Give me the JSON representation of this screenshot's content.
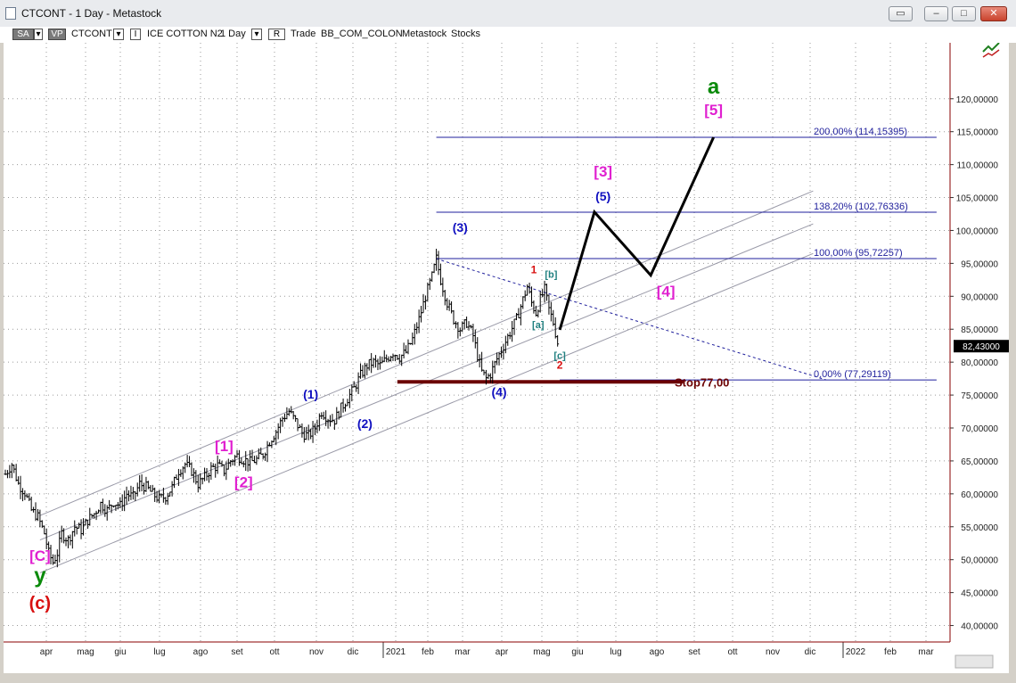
{
  "window": {
    "title": "CTCONT - 1 Day - Metastock",
    "buttons": [
      "restore-icon",
      "minimize-icon",
      "maximize-icon",
      "close-icon"
    ]
  },
  "toolbar": {
    "sa": "SA",
    "vp": "VP",
    "symbol": "CTCONT",
    "name_marker": "I",
    "name": "ICE COTTON N2",
    "period": "1 Day",
    "r_marker": "R",
    "trade": "Trade",
    "source": "BB_COM_COLON",
    "db1": "Metastock",
    "db2": "Stocks"
  },
  "colors": {
    "blue_lines": "#1f1f9c",
    "dark_red": "#6b0000",
    "magenta": "#e020d0",
    "green": "#0a8a0a",
    "red": "#d81010",
    "wave_blue": "#1010c0",
    "teal": "#208080"
  },
  "chart_data": {
    "type": "line",
    "y_unit": "price",
    "ylim": [
      37.5,
      128.5
    ],
    "y_ticks": [
      "40,00000",
      "45,00000",
      "50,00000",
      "55,00000",
      "60,00000",
      "65,00000",
      "70,00000",
      "75,00000",
      "80,00000",
      "85,00000",
      "90,00000",
      "95,00000",
      "100,00000",
      "105,00000",
      "110,00000",
      "115,00000",
      "120,00000"
    ],
    "y_tick_values": [
      40,
      45,
      50,
      55,
      60,
      65,
      70,
      75,
      80,
      85,
      90,
      95,
      100,
      105,
      110,
      115,
      120
    ],
    "x_ticks": [
      "apr",
      "mag",
      "giu",
      "lug",
      "ago",
      "set",
      "ott",
      "nov",
      "dic",
      "2021",
      "feb",
      "mar",
      "apr",
      "mag",
      "giu",
      "lug",
      "ago",
      "set",
      "ott",
      "nov",
      "dic",
      "2022",
      "feb",
      "mar"
    ],
    "last_price_label": "82,43000",
    "last_price": 82.43,
    "price_series": [
      [
        0,
        63.0
      ],
      [
        3,
        64.5
      ],
      [
        6,
        61.5
      ],
      [
        9,
        60.2
      ],
      [
        12,
        57.5
      ],
      [
        15,
        56.5
      ],
      [
        18,
        54.0
      ],
      [
        20,
        51.0
      ],
      [
        22,
        49.6
      ],
      [
        24,
        51.0
      ],
      [
        26,
        54.0
      ],
      [
        29,
        53.0
      ],
      [
        32,
        55.0
      ],
      [
        35,
        54.5
      ],
      [
        38,
        56.0
      ],
      [
        41,
        57.0
      ],
      [
        44,
        58.5
      ],
      [
        47,
        57.5
      ],
      [
        50,
        58.8
      ],
      [
        53,
        58.2
      ],
      [
        56,
        60.0
      ],
      [
        59,
        59.5
      ],
      [
        62,
        61.5
      ],
      [
        65,
        61.0
      ],
      [
        68,
        60.0
      ],
      [
        71,
        59.2
      ],
      [
        74,
        59.6
      ],
      [
        77,
        61.0
      ],
      [
        80,
        63.5
      ],
      [
        83,
        64.5
      ],
      [
        86,
        63.5
      ],
      [
        89,
        61.5
      ],
      [
        92,
        62.5
      ],
      [
        95,
        63.8
      ],
      [
        98,
        64.3
      ],
      [
        101,
        63.5
      ],
      [
        104,
        65.0
      ],
      [
        107,
        65.8
      ],
      [
        110,
        65.2
      ],
      [
        113,
        64.8
      ],
      [
        116,
        65.2
      ],
      [
        119,
        66.0
      ],
      [
        122,
        68.0
      ],
      [
        125,
        69.5
      ],
      [
        128,
        71.5
      ],
      [
        131,
        72.5
      ],
      [
        134,
        71.0
      ],
      [
        137,
        69.2
      ],
      [
        140,
        68.8
      ],
      [
        143,
        70.0
      ],
      [
        146,
        72.5
      ],
      [
        149,
        71.5
      ],
      [
        152,
        71.2
      ],
      [
        155,
        73.0
      ],
      [
        158,
        74.5
      ],
      [
        161,
        76.0
      ],
      [
        164,
        78.0
      ],
      [
        167,
        79.5
      ],
      [
        170,
        80.0
      ],
      [
        173,
        79.5
      ],
      [
        176,
        80.5
      ],
      [
        179,
        81.5
      ],
      [
        182,
        80.8
      ],
      [
        185,
        81.5
      ],
      [
        188,
        83.5
      ],
      [
        191,
        86.5
      ],
      [
        194,
        90.0
      ],
      [
        197,
        93.0
      ],
      [
        199,
        95.7
      ],
      [
        201,
        92.5
      ],
      [
        204,
        89.0
      ],
      [
        207,
        86.5
      ],
      [
        210,
        85.0
      ],
      [
        213,
        86.0
      ],
      [
        216,
        84.0
      ],
      [
        218,
        81.0
      ],
      [
        220,
        78.5
      ],
      [
        222,
        77.5
      ],
      [
        224,
        78.2
      ],
      [
        227,
        80.5
      ],
      [
        230,
        82.5
      ],
      [
        233,
        84.5
      ],
      [
        236,
        86.5
      ],
      [
        239,
        89.5
      ],
      [
        241,
        91.5
      ],
      [
        243,
        89.0
      ],
      [
        245,
        87.5
      ],
      [
        247,
        89.5
      ],
      [
        249,
        91.0
      ],
      [
        251,
        88.0
      ],
      [
        253,
        86.0
      ],
      [
        255,
        83.0
      ],
      [
        256,
        82.4
      ]
    ],
    "series": [
      {
        "values": [
          [
            256,
            84.9
          ],
          [
            272,
            102.8
          ],
          [
            298,
            93.2
          ],
          [
            327,
            114.15
          ]
        ]
      }
    ],
    "fib_levels": [
      {
        "label": "0,00% (77,29119)",
        "value": 77.29119,
        "from": 256,
        "to": 430
      },
      {
        "label": "100,00% (95,72257)",
        "value": 95.72257,
        "from": 199,
        "to": 430
      },
      {
        "label": "138,20% (102,76336)",
        "value": 102.76336,
        "from": 199,
        "to": 430
      },
      {
        "label": "200,00% (114,15395)",
        "value": 114.15395,
        "from": 199,
        "to": 430
      }
    ],
    "stop": {
      "label": "Stop77,00",
      "value": 77.0,
      "from": 181,
      "to": 313
    },
    "channel_lines": [
      {
        "from": [
          16,
          56.7
        ],
        "to": [
          373,
          106.0
        ]
      },
      {
        "from": [
          16,
          53.0
        ],
        "to": [
          373,
          101.0
        ]
      },
      {
        "from": [
          16,
          48.0
        ],
        "to": [
          373,
          96.5
        ]
      }
    ],
    "dashed_trend": {
      "from": [
        199,
        95.7
      ],
      "to": [
        379,
        77.3
      ]
    },
    "labels": [
      {
        "text": "[C]",
        "x": 16,
        "y": 49.8,
        "color": "magenta"
      },
      {
        "text": "y",
        "x": 16,
        "y": 46.5,
        "color": "green"
      },
      {
        "text": "(c)",
        "x": 16,
        "y": 42.5,
        "color": "red"
      },
      {
        "text": "[1]",
        "x": 101,
        "y": 66.5,
        "color": "magenta"
      },
      {
        "text": "[2]",
        "x": 110,
        "y": 61.0,
        "color": "magenta"
      },
      {
        "text": "(1)",
        "x": 141,
        "y": 74.5,
        "color": "wave_blue"
      },
      {
        "text": "(2)",
        "x": 166,
        "y": 70.0,
        "color": "wave_blue"
      },
      {
        "text": "(3)",
        "x": 210,
        "y": 99.8,
        "color": "wave_blue"
      },
      {
        "text": "(4)",
        "x": 228,
        "y": 74.8,
        "color": "wave_blue"
      },
      {
        "text": "1",
        "x": 244,
        "y": 93.5,
        "color": "red"
      },
      {
        "text": "[b]",
        "x": 252,
        "y": 92.8,
        "color": "teal"
      },
      {
        "text": "[a]",
        "x": 246,
        "y": 85.2,
        "color": "teal"
      },
      {
        "text": "[c]",
        "x": 256,
        "y": 80.5,
        "color": "teal"
      },
      {
        "text": "2",
        "x": 256,
        "y": 79.0,
        "color": "red"
      },
      {
        "text": "[3]",
        "x": 276,
        "y": 108.2,
        "color": "magenta"
      },
      {
        "text": "(5)",
        "x": 276,
        "y": 104.5,
        "color": "wave_blue"
      },
      {
        "text": "[4]",
        "x": 305,
        "y": 90.0,
        "color": "magenta"
      },
      {
        "text": "a",
        "x": 327,
        "y": 120.8,
        "color": "green"
      },
      {
        "text": "[5]",
        "x": 327,
        "y": 117.5,
        "color": "magenta"
      }
    ]
  }
}
